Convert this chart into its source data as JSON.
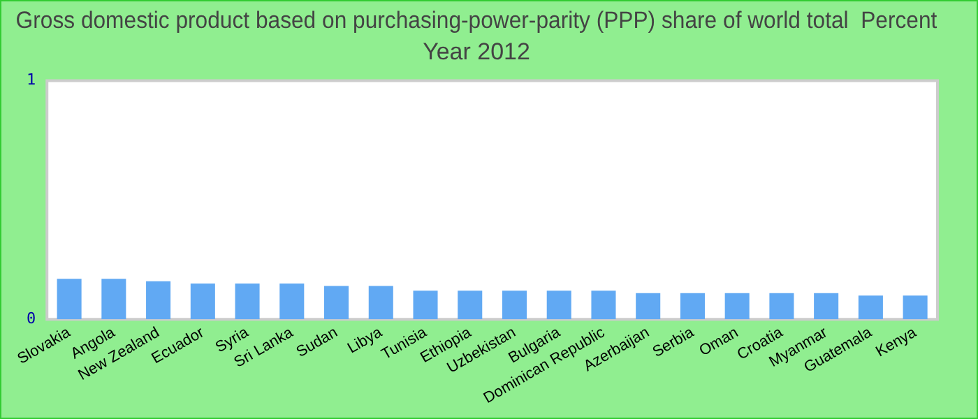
{
  "chart_data": {
    "type": "bar",
    "title": "Gross domestic product based on purchasing-power-parity (PPP) share of world total  Percent",
    "subtitle": "Year 2012",
    "categories": [
      "Slovakia",
      "Angola",
      "New Zealand",
      "Ecuador",
      "Syria",
      "Sri Lanka",
      "Sudan",
      "Libya",
      "Tunisia",
      "Ethiopia",
      "Uzbekistan",
      "Bulgaria",
      "Dominican Republic",
      "Azerbaijan",
      "Serbia",
      "Oman",
      "Croatia",
      "Myanmar",
      "Guatemala",
      "Kenya"
    ],
    "values": [
      0.17,
      0.17,
      0.16,
      0.15,
      0.15,
      0.15,
      0.14,
      0.14,
      0.12,
      0.12,
      0.12,
      0.12,
      0.12,
      0.11,
      0.11,
      0.11,
      0.11,
      0.11,
      0.1,
      0.1
    ],
    "color": "#61a9f3",
    "ylim": [
      0,
      1
    ],
    "yticks": [
      0,
      1
    ],
    "grid": false,
    "legend": false
  }
}
